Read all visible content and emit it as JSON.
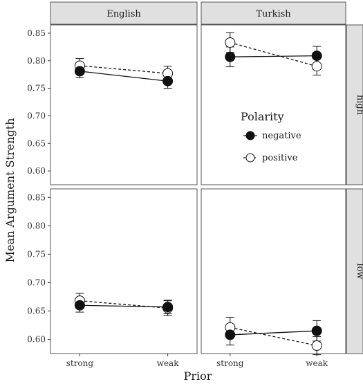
{
  "chart_data": {
    "type": "line",
    "facet_columns": [
      "English",
      "Turkish"
    ],
    "facet_rows": [
      "high",
      "low"
    ],
    "categories": [
      "strong",
      "weak"
    ],
    "xlabel": "Prior",
    "ylabel": "Mean Argument Strength",
    "ylim": [
      0.575,
      0.865
    ],
    "yticks": [
      "0.60",
      "0.65",
      "0.70",
      "0.75",
      "0.80",
      "0.85"
    ],
    "legend": {
      "title": "Polarity",
      "placement": "inside Turkish-high panel",
      "entries": [
        {
          "name": "negative",
          "marker": "filled-circle",
          "line": "solid"
        },
        {
          "name": "positive",
          "marker": "open-circle",
          "line": "dashed"
        }
      ]
    },
    "panels": [
      {
        "column": "English",
        "row": "high",
        "series": [
          {
            "name": "negative",
            "values": [
              0.781,
              0.763
            ],
            "err": [
              0.012,
              0.013
            ]
          },
          {
            "name": "positive",
            "values": [
              0.791,
              0.777
            ],
            "err": [
              0.013,
              0.013
            ]
          }
        ]
      },
      {
        "column": "Turkish",
        "row": "high",
        "series": [
          {
            "name": "negative",
            "values": [
              0.807,
              0.809
            ],
            "err": [
              0.018,
              0.017
            ]
          },
          {
            "name": "positive",
            "values": [
              0.833,
              0.79
            ],
            "err": [
              0.018,
              0.016
            ]
          }
        ]
      },
      {
        "column": "English",
        "row": "low",
        "series": [
          {
            "name": "negative",
            "values": [
              0.66,
              0.657
            ],
            "err": [
              0.012,
              0.012
            ]
          },
          {
            "name": "positive",
            "values": [
              0.668,
              0.655
            ],
            "err": [
              0.013,
              0.013
            ]
          }
        ]
      },
      {
        "column": "Turkish",
        "row": "low",
        "series": [
          {
            "name": "negative",
            "values": [
              0.608,
              0.615
            ],
            "err": [
              0.018,
              0.018
            ]
          },
          {
            "name": "positive",
            "values": [
              0.621,
              0.589
            ],
            "err": [
              0.018,
              0.016
            ]
          }
        ]
      }
    ]
  }
}
